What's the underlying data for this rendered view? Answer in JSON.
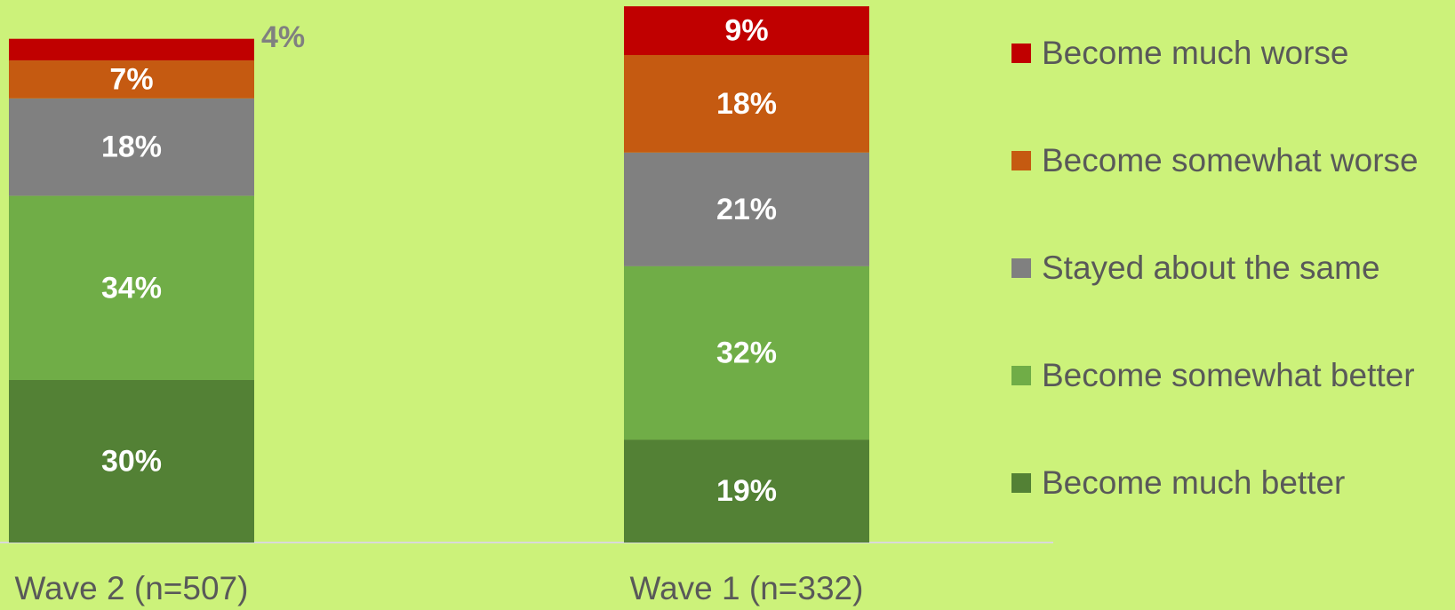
{
  "chart_data": {
    "type": "stacked_bar",
    "categories": [
      "Wave 2 (n=507)",
      "Wave 1 (n=332)"
    ],
    "series": [
      {
        "name": "Become much better",
        "color": "#538135",
        "values": [
          30,
          19
        ],
        "value_labels": [
          "30%",
          "19%"
        ]
      },
      {
        "name": "Become somewhat better",
        "color": "#70ad47",
        "values": [
          34,
          32
        ],
        "value_labels": [
          "34%",
          "32%"
        ]
      },
      {
        "name": "Stayed about the same",
        "color": "#808080",
        "values": [
          18,
          21
        ],
        "value_labels": [
          "18%",
          "21%"
        ]
      },
      {
        "name": "Become somewhat worse",
        "color": "#c55a11",
        "values": [
          7,
          18
        ],
        "value_labels": [
          "7%",
          "18%"
        ]
      },
      {
        "name": "Become much worse",
        "color": "#c00000",
        "values": [
          4,
          9
        ],
        "value_labels": [
          "4%",
          "9%"
        ]
      }
    ],
    "ylim": [
      0,
      100
    ]
  }
}
